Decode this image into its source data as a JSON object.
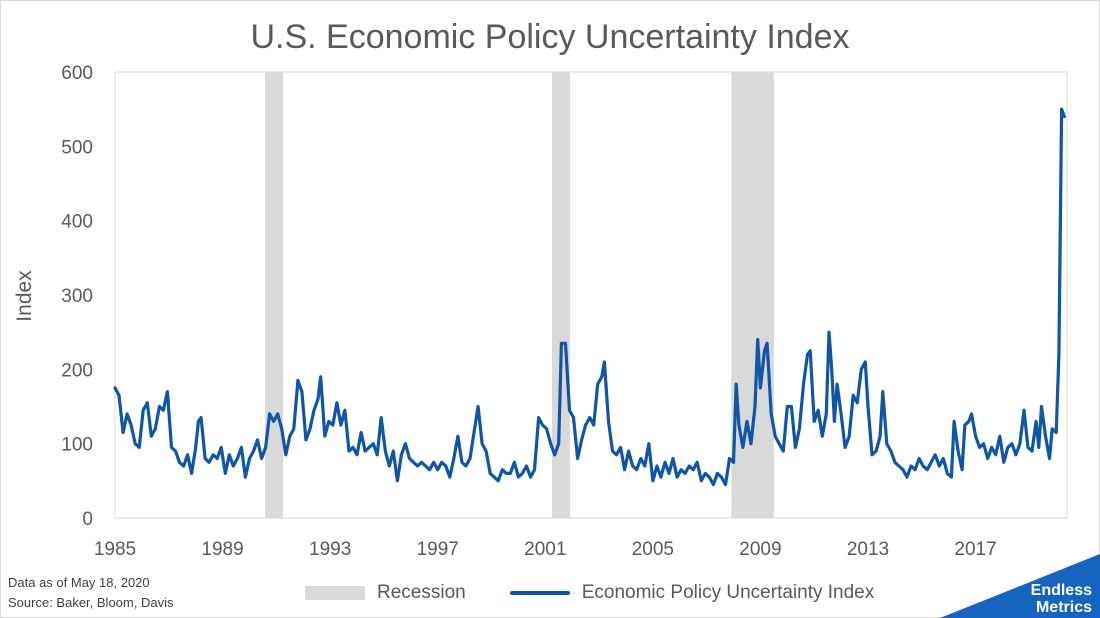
{
  "chart_data": {
    "type": "line",
    "title": "U.S. Economic Policy Uncertainty Index",
    "ylabel": "Index",
    "xlabel": "",
    "xlim": [
      1985,
      2020.4
    ],
    "ylim": [
      0,
      600
    ],
    "yticks": [
      0,
      100,
      200,
      300,
      400,
      500,
      600
    ],
    "xticks": [
      1985,
      1989,
      1993,
      1997,
      2001,
      2005,
      2009,
      2013,
      2017
    ],
    "grid": false,
    "legend_position": "bottom",
    "recessions": [
      {
        "start": 1990.58,
        "end": 1991.25
      },
      {
        "start": 2001.25,
        "end": 2001.92
      },
      {
        "start": 2007.92,
        "end": 2009.5
      }
    ],
    "series": [
      {
        "name": "Economic Policy Uncertainty Index",
        "color": "#0f56a8",
        "points": [
          [
            1985.0,
            175
          ],
          [
            1985.15,
            165
          ],
          [
            1985.3,
            115
          ],
          [
            1985.45,
            140
          ],
          [
            1985.6,
            125
          ],
          [
            1985.75,
            100
          ],
          [
            1985.9,
            95
          ],
          [
            1986.05,
            145
          ],
          [
            1986.2,
            155
          ],
          [
            1986.35,
            110
          ],
          [
            1986.5,
            120
          ],
          [
            1986.65,
            150
          ],
          [
            1986.8,
            145
          ],
          [
            1986.95,
            170
          ],
          [
            1987.1,
            95
          ],
          [
            1987.25,
            90
          ],
          [
            1987.4,
            75
          ],
          [
            1987.55,
            70
          ],
          [
            1987.7,
            85
          ],
          [
            1987.85,
            60
          ],
          [
            1988.0,
            95
          ],
          [
            1988.1,
            130
          ],
          [
            1988.2,
            135
          ],
          [
            1988.35,
            80
          ],
          [
            1988.5,
            75
          ],
          [
            1988.65,
            85
          ],
          [
            1988.8,
            80
          ],
          [
            1988.95,
            95
          ],
          [
            1989.1,
            60
          ],
          [
            1989.25,
            85
          ],
          [
            1989.4,
            70
          ],
          [
            1989.55,
            80
          ],
          [
            1989.7,
            95
          ],
          [
            1989.85,
            55
          ],
          [
            1990.0,
            80
          ],
          [
            1990.15,
            90
          ],
          [
            1990.3,
            105
          ],
          [
            1990.45,
            80
          ],
          [
            1990.6,
            95
          ],
          [
            1990.75,
            140
          ],
          [
            1990.9,
            130
          ],
          [
            1991.05,
            140
          ],
          [
            1991.2,
            120
          ],
          [
            1991.35,
            85
          ],
          [
            1991.5,
            110
          ],
          [
            1991.65,
            120
          ],
          [
            1991.8,
            185
          ],
          [
            1991.95,
            170
          ],
          [
            1992.1,
            105
          ],
          [
            1992.25,
            120
          ],
          [
            1992.4,
            145
          ],
          [
            1992.55,
            160
          ],
          [
            1992.65,
            190
          ],
          [
            1992.8,
            110
          ],
          [
            1992.95,
            130
          ],
          [
            1993.1,
            125
          ],
          [
            1993.25,
            155
          ],
          [
            1993.4,
            125
          ],
          [
            1993.55,
            145
          ],
          [
            1993.7,
            90
          ],
          [
            1993.85,
            95
          ],
          [
            1994.0,
            85
          ],
          [
            1994.15,
            115
          ],
          [
            1994.3,
            90
          ],
          [
            1994.45,
            95
          ],
          [
            1994.6,
            100
          ],
          [
            1994.75,
            85
          ],
          [
            1994.9,
            135
          ],
          [
            1995.05,
            90
          ],
          [
            1995.2,
            70
          ],
          [
            1995.35,
            90
          ],
          [
            1995.5,
            50
          ],
          [
            1995.65,
            85
          ],
          [
            1995.8,
            100
          ],
          [
            1995.95,
            80
          ],
          [
            1996.1,
            75
          ],
          [
            1996.25,
            70
          ],
          [
            1996.4,
            75
          ],
          [
            1996.55,
            70
          ],
          [
            1996.7,
            65
          ],
          [
            1996.85,
            75
          ],
          [
            1997.0,
            65
          ],
          [
            1997.15,
            75
          ],
          [
            1997.3,
            70
          ],
          [
            1997.45,
            55
          ],
          [
            1997.6,
            80
          ],
          [
            1997.75,
            110
          ],
          [
            1997.9,
            75
          ],
          [
            1998.05,
            70
          ],
          [
            1998.2,
            80
          ],
          [
            1998.35,
            115
          ],
          [
            1998.5,
            150
          ],
          [
            1998.65,
            100
          ],
          [
            1998.8,
            90
          ],
          [
            1998.95,
            60
          ],
          [
            1999.1,
            55
          ],
          [
            1999.25,
            50
          ],
          [
            1999.4,
            65
          ],
          [
            1999.55,
            60
          ],
          [
            1999.7,
            60
          ],
          [
            1999.85,
            75
          ],
          [
            2000.0,
            55
          ],
          [
            2000.15,
            60
          ],
          [
            2000.3,
            70
          ],
          [
            2000.45,
            55
          ],
          [
            2000.6,
            65
          ],
          [
            2000.75,
            135
          ],
          [
            2000.9,
            125
          ],
          [
            2001.05,
            120
          ],
          [
            2001.2,
            100
          ],
          [
            2001.35,
            85
          ],
          [
            2001.5,
            100
          ],
          [
            2001.6,
            235
          ],
          [
            2001.75,
            235
          ],
          [
            2001.9,
            145
          ],
          [
            2002.05,
            135
          ],
          [
            2002.2,
            80
          ],
          [
            2002.35,
            105
          ],
          [
            2002.5,
            125
          ],
          [
            2002.65,
            135
          ],
          [
            2002.8,
            125
          ],
          [
            2002.95,
            180
          ],
          [
            2003.1,
            190
          ],
          [
            2003.2,
            210
          ],
          [
            2003.35,
            130
          ],
          [
            2003.5,
            90
          ],
          [
            2003.65,
            85
          ],
          [
            2003.8,
            95
          ],
          [
            2003.95,
            65
          ],
          [
            2004.1,
            90
          ],
          [
            2004.25,
            70
          ],
          [
            2004.4,
            65
          ],
          [
            2004.55,
            80
          ],
          [
            2004.7,
            70
          ],
          [
            2004.85,
            100
          ],
          [
            2005.0,
            50
          ],
          [
            2005.15,
            70
          ],
          [
            2005.3,
            55
          ],
          [
            2005.45,
            75
          ],
          [
            2005.6,
            60
          ],
          [
            2005.75,
            80
          ],
          [
            2005.9,
            55
          ],
          [
            2006.05,
            65
          ],
          [
            2006.2,
            60
          ],
          [
            2006.35,
            70
          ],
          [
            2006.5,
            65
          ],
          [
            2006.65,
            75
          ],
          [
            2006.8,
            50
          ],
          [
            2006.95,
            60
          ],
          [
            2007.1,
            55
          ],
          [
            2007.25,
            45
          ],
          [
            2007.4,
            60
          ],
          [
            2007.55,
            55
          ],
          [
            2007.7,
            45
          ],
          [
            2007.85,
            80
          ],
          [
            2008.0,
            75
          ],
          [
            2008.1,
            180
          ],
          [
            2008.2,
            125
          ],
          [
            2008.35,
            95
          ],
          [
            2008.5,
            130
          ],
          [
            2008.65,
            100
          ],
          [
            2008.8,
            150
          ],
          [
            2008.9,
            240
          ],
          [
            2009.0,
            175
          ],
          [
            2009.15,
            225
          ],
          [
            2009.25,
            235
          ],
          [
            2009.4,
            140
          ],
          [
            2009.55,
            110
          ],
          [
            2009.7,
            100
          ],
          [
            2009.85,
            90
          ],
          [
            2010.0,
            150
          ],
          [
            2010.15,
            150
          ],
          [
            2010.3,
            95
          ],
          [
            2010.45,
            120
          ],
          [
            2010.6,
            180
          ],
          [
            2010.75,
            220
          ],
          [
            2010.85,
            225
          ],
          [
            2011.0,
            130
          ],
          [
            2011.15,
            145
          ],
          [
            2011.3,
            110
          ],
          [
            2011.45,
            140
          ],
          [
            2011.55,
            250
          ],
          [
            2011.65,
            200
          ],
          [
            2011.75,
            130
          ],
          [
            2011.85,
            180
          ],
          [
            2012.0,
            140
          ],
          [
            2012.15,
            95
          ],
          [
            2012.3,
            110
          ],
          [
            2012.45,
            165
          ],
          [
            2012.6,
            155
          ],
          [
            2012.75,
            200
          ],
          [
            2012.9,
            210
          ],
          [
            2013.0,
            150
          ],
          [
            2013.15,
            85
          ],
          [
            2013.3,
            90
          ],
          [
            2013.45,
            110
          ],
          [
            2013.55,
            170
          ],
          [
            2013.7,
            100
          ],
          [
            2013.85,
            90
          ],
          [
            2014.0,
            75
          ],
          [
            2014.15,
            70
          ],
          [
            2014.3,
            65
          ],
          [
            2014.45,
            55
          ],
          [
            2014.6,
            70
          ],
          [
            2014.75,
            65
          ],
          [
            2014.9,
            80
          ],
          [
            2015.05,
            70
          ],
          [
            2015.2,
            65
          ],
          [
            2015.35,
            75
          ],
          [
            2015.5,
            85
          ],
          [
            2015.65,
            70
          ],
          [
            2015.8,
            80
          ],
          [
            2015.95,
            60
          ],
          [
            2016.1,
            55
          ],
          [
            2016.2,
            130
          ],
          [
            2016.35,
            90
          ],
          [
            2016.5,
            65
          ],
          [
            2016.6,
            125
          ],
          [
            2016.75,
            130
          ],
          [
            2016.85,
            140
          ],
          [
            2017.0,
            110
          ],
          [
            2017.15,
            95
          ],
          [
            2017.3,
            100
          ],
          [
            2017.45,
            80
          ],
          [
            2017.6,
            95
          ],
          [
            2017.75,
            85
          ],
          [
            2017.9,
            110
          ],
          [
            2018.05,
            75
          ],
          [
            2018.2,
            95
          ],
          [
            2018.35,
            100
          ],
          [
            2018.5,
            85
          ],
          [
            2018.65,
            100
          ],
          [
            2018.8,
            145
          ],
          [
            2018.95,
            95
          ],
          [
            2019.1,
            90
          ],
          [
            2019.25,
            130
          ],
          [
            2019.35,
            95
          ],
          [
            2019.45,
            150
          ],
          [
            2019.6,
            110
          ],
          [
            2019.75,
            80
          ],
          [
            2019.85,
            120
          ],
          [
            2020.0,
            115
          ],
          [
            2020.1,
            220
          ],
          [
            2020.2,
            550
          ],
          [
            2020.3,
            540
          ]
        ]
      }
    ],
    "legend": [
      {
        "label": "Recession",
        "type": "area",
        "color": "#d9d9d9"
      },
      {
        "label": "Economic Policy Uncertainty Index",
        "type": "line",
        "color": "#0f56a8"
      }
    ]
  },
  "footnotes": {
    "data_as_of": "Data as of May 18, 2020",
    "source": "Source: Baker, Bloom, Davis"
  },
  "brand": {
    "line1": "Endless",
    "line2": "Metrics",
    "color": "#1565c0"
  }
}
